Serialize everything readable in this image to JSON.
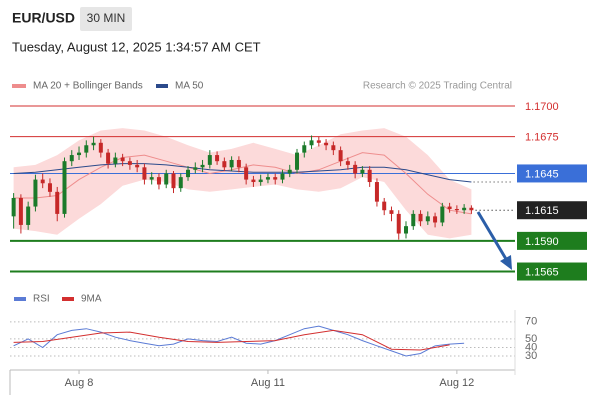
{
  "chart_data": [
    {
      "type": "candlestick",
      "title": "EUR/USD",
      "timeframe": "30 MIN",
      "subtitle": "Tuesday, August 12, 2025 1:34:57 AM CET",
      "annotation": "Research © 2025 Trading Central",
      "xlim": [
        -0.5,
        69
      ],
      "ylim": [
        1.1554,
        1.1709
      ],
      "up_color": "#1b7a2a",
      "down_color": "#c62828",
      "open": [
        1.161,
        1.1625,
        1.1603,
        1.1618,
        1.164,
        1.1637,
        1.163,
        1.1612,
        1.1655,
        1.166,
        1.1662,
        1.1668,
        1.167,
        1.1662,
        1.1653,
        1.1658,
        1.1655,
        1.1652,
        1.165,
        1.164,
        1.1642,
        1.1636,
        1.1645,
        1.1633,
        1.1642,
        1.1648,
        1.165,
        1.1652,
        1.166,
        1.1655,
        1.165,
        1.1656,
        1.165,
        1.164,
        1.1638,
        1.164,
        1.1642,
        1.164,
        1.1645,
        1.1648,
        1.1662,
        1.1668,
        1.1672,
        1.167,
        1.1668,
        1.1664,
        1.1655,
        1.1652,
        1.1645,
        1.1648,
        1.1638,
        1.1622,
        1.1615,
        1.1612,
        1.1596,
        1.1602,
        1.1612,
        1.1606,
        1.161,
        1.1605,
        1.1618,
        1.1616,
        1.1615,
        1.1617
      ],
      "high": [
        1.1629,
        1.1628,
        1.1622,
        1.1644,
        1.1645,
        1.1641,
        1.1634,
        1.1658,
        1.1664,
        1.1667,
        1.1672,
        1.1675,
        1.1673,
        1.1665,
        1.1662,
        1.1661,
        1.1658,
        1.1656,
        1.1653,
        1.1646,
        1.1645,
        1.1648,
        1.1647,
        1.1645,
        1.1651,
        1.1654,
        1.1656,
        1.1664,
        1.1663,
        1.1658,
        1.1659,
        1.1659,
        1.1653,
        1.1643,
        1.1644,
        1.1645,
        1.1645,
        1.1648,
        1.1652,
        1.1665,
        1.1671,
        1.1676,
        1.1675,
        1.1673,
        1.1671,
        1.1667,
        1.1658,
        1.1655,
        1.1651,
        1.1651,
        1.1641,
        1.1625,
        1.1618,
        1.1615,
        1.1606,
        1.1615,
        1.1615,
        1.1614,
        1.1613,
        1.1621,
        1.1621,
        1.1619,
        1.162,
        1.1619
      ],
      "low": [
        1.16,
        1.1596,
        1.1599,
        1.1614,
        1.1633,
        1.1626,
        1.1606,
        1.1609,
        1.1651,
        1.1656,
        1.1658,
        1.1664,
        1.1658,
        1.1649,
        1.165,
        1.1651,
        1.1648,
        1.1646,
        1.1636,
        1.1636,
        1.1632,
        1.1633,
        1.1629,
        1.163,
        1.1639,
        1.1645,
        1.1646,
        1.1649,
        1.1652,
        1.1647,
        1.1647,
        1.1646,
        1.1636,
        1.1634,
        1.1635,
        1.1637,
        1.1636,
        1.1637,
        1.1642,
        1.1645,
        1.1658,
        1.1665,
        1.1667,
        1.1664,
        1.166,
        1.1651,
        1.1648,
        1.1641,
        1.1642,
        1.1634,
        1.1618,
        1.1611,
        1.1606,
        1.1591,
        1.1592,
        1.1599,
        1.1602,
        1.1603,
        1.1601,
        1.1602,
        1.1613,
        1.1612,
        1.1612,
        1.1612
      ],
      "close": [
        1.1625,
        1.1603,
        1.1618,
        1.164,
        1.1637,
        1.163,
        1.1612,
        1.1655,
        1.166,
        1.1662,
        1.1668,
        1.167,
        1.1662,
        1.1653,
        1.1658,
        1.1655,
        1.1652,
        1.165,
        1.164,
        1.1642,
        1.1636,
        1.1645,
        1.1633,
        1.1642,
        1.1648,
        1.165,
        1.1652,
        1.166,
        1.1655,
        1.165,
        1.1656,
        1.165,
        1.164,
        1.1638,
        1.164,
        1.1642,
        1.164,
        1.1645,
        1.1648,
        1.1662,
        1.1668,
        1.1672,
        1.167,
        1.1668,
        1.1664,
        1.1655,
        1.1652,
        1.1645,
        1.1648,
        1.1638,
        1.1622,
        1.1615,
        1.1612,
        1.1596,
        1.1602,
        1.1612,
        1.1606,
        1.161,
        1.1605,
        1.1618,
        1.1616,
        1.1615,
        1.1617,
        1.1615
      ],
      "yticks": [
        {
          "value": 1.17,
          "label": "1.1700"
        },
        {
          "value": 1.1675,
          "label": "1.1675"
        },
        {
          "value": 1.1645,
          "label": "1.1645"
        },
        {
          "value": 1.1615,
          "label": "1.1615"
        },
        {
          "value": 1.159,
          "label": "1.1590"
        },
        {
          "value": 1.1565,
          "label": "1.1565"
        }
      ],
      "level_colors": [
        "#d32f2f",
        "#d32f2f",
        "#3a6fd8",
        "#222222",
        "#1e7d1e",
        "#1e7d1e"
      ],
      "level_lines": [
        "thin",
        "thin",
        "thin",
        "dotted",
        "thick",
        "thick"
      ],
      "boxed_levels": [
        false,
        false,
        true,
        true,
        true,
        true
      ],
      "series": [
        {
          "name": "MA 20 + Bollinger Bands",
          "color": "#ee8d8d",
          "band_color": "#fcdada",
          "x": [
            0,
            3,
            6,
            9,
            12,
            15,
            18,
            21,
            24,
            27,
            30,
            33,
            36,
            39,
            42,
            45,
            48,
            51,
            54,
            57,
            60,
            63
          ],
          "values": [
            1.1625,
            1.1625,
            1.1627,
            1.164,
            1.165,
            1.1658,
            1.166,
            1.1655,
            1.165,
            1.1645,
            1.1648,
            1.1652,
            1.165,
            1.1645,
            1.1648,
            1.1655,
            1.1662,
            1.166,
            1.1645,
            1.1628,
            1.1615,
            1.1612
          ],
          "upper": [
            1.165,
            1.1652,
            1.166,
            1.1672,
            1.168,
            1.1682,
            1.168,
            1.1675,
            1.1668,
            1.1662,
            1.1665,
            1.167,
            1.1665,
            1.166,
            1.1668,
            1.1677,
            1.168,
            1.1682,
            1.1675,
            1.166,
            1.164,
            1.1632
          ],
          "lower": [
            1.16,
            1.1598,
            1.1595,
            1.1608,
            1.162,
            1.1635,
            1.164,
            1.1638,
            1.1632,
            1.163,
            1.1632,
            1.1634,
            1.1636,
            1.1632,
            1.163,
            1.1633,
            1.1642,
            1.1638,
            1.1615,
            1.1595,
            1.1592,
            1.1595
          ]
        },
        {
          "name": "MA 50",
          "color": "#2b4a8b",
          "x": [
            0,
            3,
            6,
            9,
            12,
            15,
            18,
            21,
            24,
            27,
            30,
            33,
            36,
            39,
            42,
            45,
            48,
            51,
            54,
            57,
            60,
            63
          ],
          "values": [
            1.1645,
            1.1646,
            1.1648,
            1.165,
            1.1652,
            1.1653,
            1.1653,
            1.1652,
            1.165,
            1.1648,
            1.1647,
            1.1646,
            1.1646,
            1.1646,
            1.1647,
            1.1648,
            1.165,
            1.165,
            1.1648,
            1.1644,
            1.164,
            1.1638
          ]
        }
      ]
    },
    {
      "type": "line",
      "xlim": [
        -0.5,
        69
      ],
      "ylim": [
        16,
        78
      ],
      "yticks": [
        70,
        50,
        40,
        30
      ],
      "xticks": [
        {
          "value": 9,
          "label": "Aug 8"
        },
        {
          "value": 35,
          "label": "Aug 11"
        },
        {
          "value": 61,
          "label": "Aug 12"
        }
      ],
      "series": [
        {
          "name": "RSI",
          "color": "#5b7bd5",
          "x": [
            0,
            2,
            4,
            6,
            8,
            10,
            12,
            14,
            16,
            18,
            20,
            22,
            24,
            26,
            28,
            30,
            32,
            34,
            36,
            38,
            40,
            42,
            44,
            46,
            48,
            50,
            52,
            54,
            56,
            58,
            60,
            62
          ],
          "values": [
            42,
            50,
            40,
            55,
            60,
            62,
            58,
            52,
            48,
            45,
            42,
            44,
            50,
            48,
            47,
            52,
            45,
            44,
            48,
            55,
            62,
            65,
            60,
            55,
            48,
            42,
            36,
            30,
            33,
            42,
            44,
            45
          ]
        },
        {
          "name": "9MA",
          "color": "#d32f2f",
          "x": [
            0,
            4,
            8,
            12,
            16,
            20,
            24,
            28,
            32,
            36,
            40,
            44,
            48,
            52,
            56,
            60
          ],
          "values": [
            46,
            47,
            52,
            57,
            58,
            52,
            47,
            46,
            47,
            48,
            55,
            60,
            55,
            38,
            37,
            43
          ]
        }
      ]
    }
  ]
}
